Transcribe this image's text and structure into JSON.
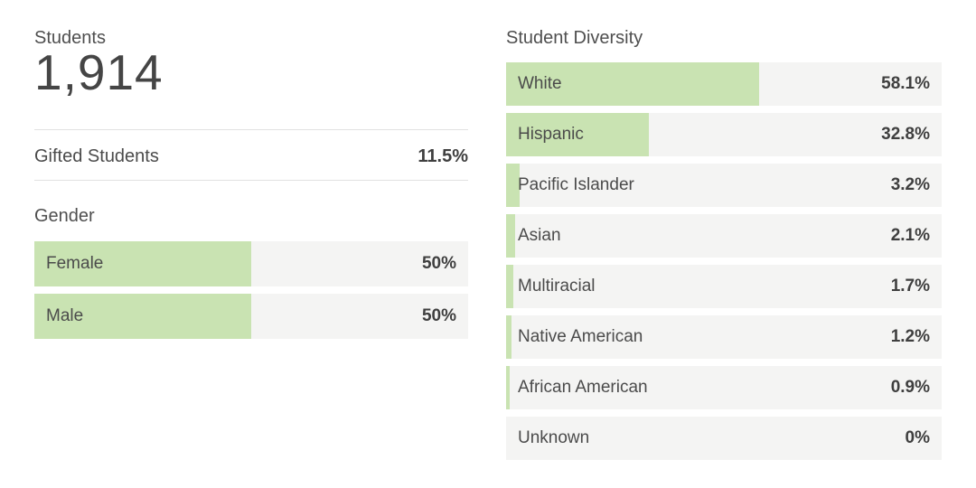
{
  "colors": {
    "bar_fill": "#c9e3b2",
    "bar_track": "#f4f4f3",
    "divider": "#e2e2e2",
    "heading_text": "#4f4f4f",
    "value_text": "#3f3f3f"
  },
  "left": {
    "students_label": "Students",
    "students_value": "1,914",
    "gifted_label": "Gifted Students",
    "gifted_value": "11.5%",
    "gender_title": "Gender",
    "gender_bars": [
      {
        "label": "Female",
        "value": "50%",
        "pct": 50
      },
      {
        "label": "Male",
        "value": "50%",
        "pct": 50
      }
    ]
  },
  "right": {
    "title": "Student Diversity",
    "bars": [
      {
        "label": "White",
        "value": "58.1%",
        "pct": 58.1
      },
      {
        "label": "Hispanic",
        "value": "32.8%",
        "pct": 32.8
      },
      {
        "label": "Pacific Islander",
        "value": "3.2%",
        "pct": 3.2
      },
      {
        "label": "Asian",
        "value": "2.1%",
        "pct": 2.1
      },
      {
        "label": "Multiracial",
        "value": "1.7%",
        "pct": 1.7
      },
      {
        "label": "Native American",
        "value": "1.2%",
        "pct": 1.2
      },
      {
        "label": "African American",
        "value": "0.9%",
        "pct": 0.9
      },
      {
        "label": "Unknown",
        "value": "0%",
        "pct": 0
      }
    ]
  },
  "chart_data": [
    {
      "type": "table",
      "title": "Student summary",
      "rows": [
        [
          "Students",
          "1,914"
        ],
        [
          "Gifted Students",
          "11.5%"
        ]
      ]
    },
    {
      "type": "bar",
      "title": "Gender",
      "orientation": "horizontal",
      "categories": [
        "Female",
        "Male"
      ],
      "values": [
        50,
        50
      ],
      "unit": "%",
      "xlim": [
        0,
        100
      ],
      "grid": false,
      "legend": false
    },
    {
      "type": "bar",
      "title": "Student Diversity",
      "orientation": "horizontal",
      "categories": [
        "White",
        "Hispanic",
        "Pacific Islander",
        "Asian",
        "Multiracial",
        "Native American",
        "African American",
        "Unknown"
      ],
      "values": [
        58.1,
        32.8,
        3.2,
        2.1,
        1.7,
        1.2,
        0.9,
        0
      ],
      "unit": "%",
      "xlim": [
        0,
        100
      ],
      "grid": false,
      "legend": false
    }
  ]
}
